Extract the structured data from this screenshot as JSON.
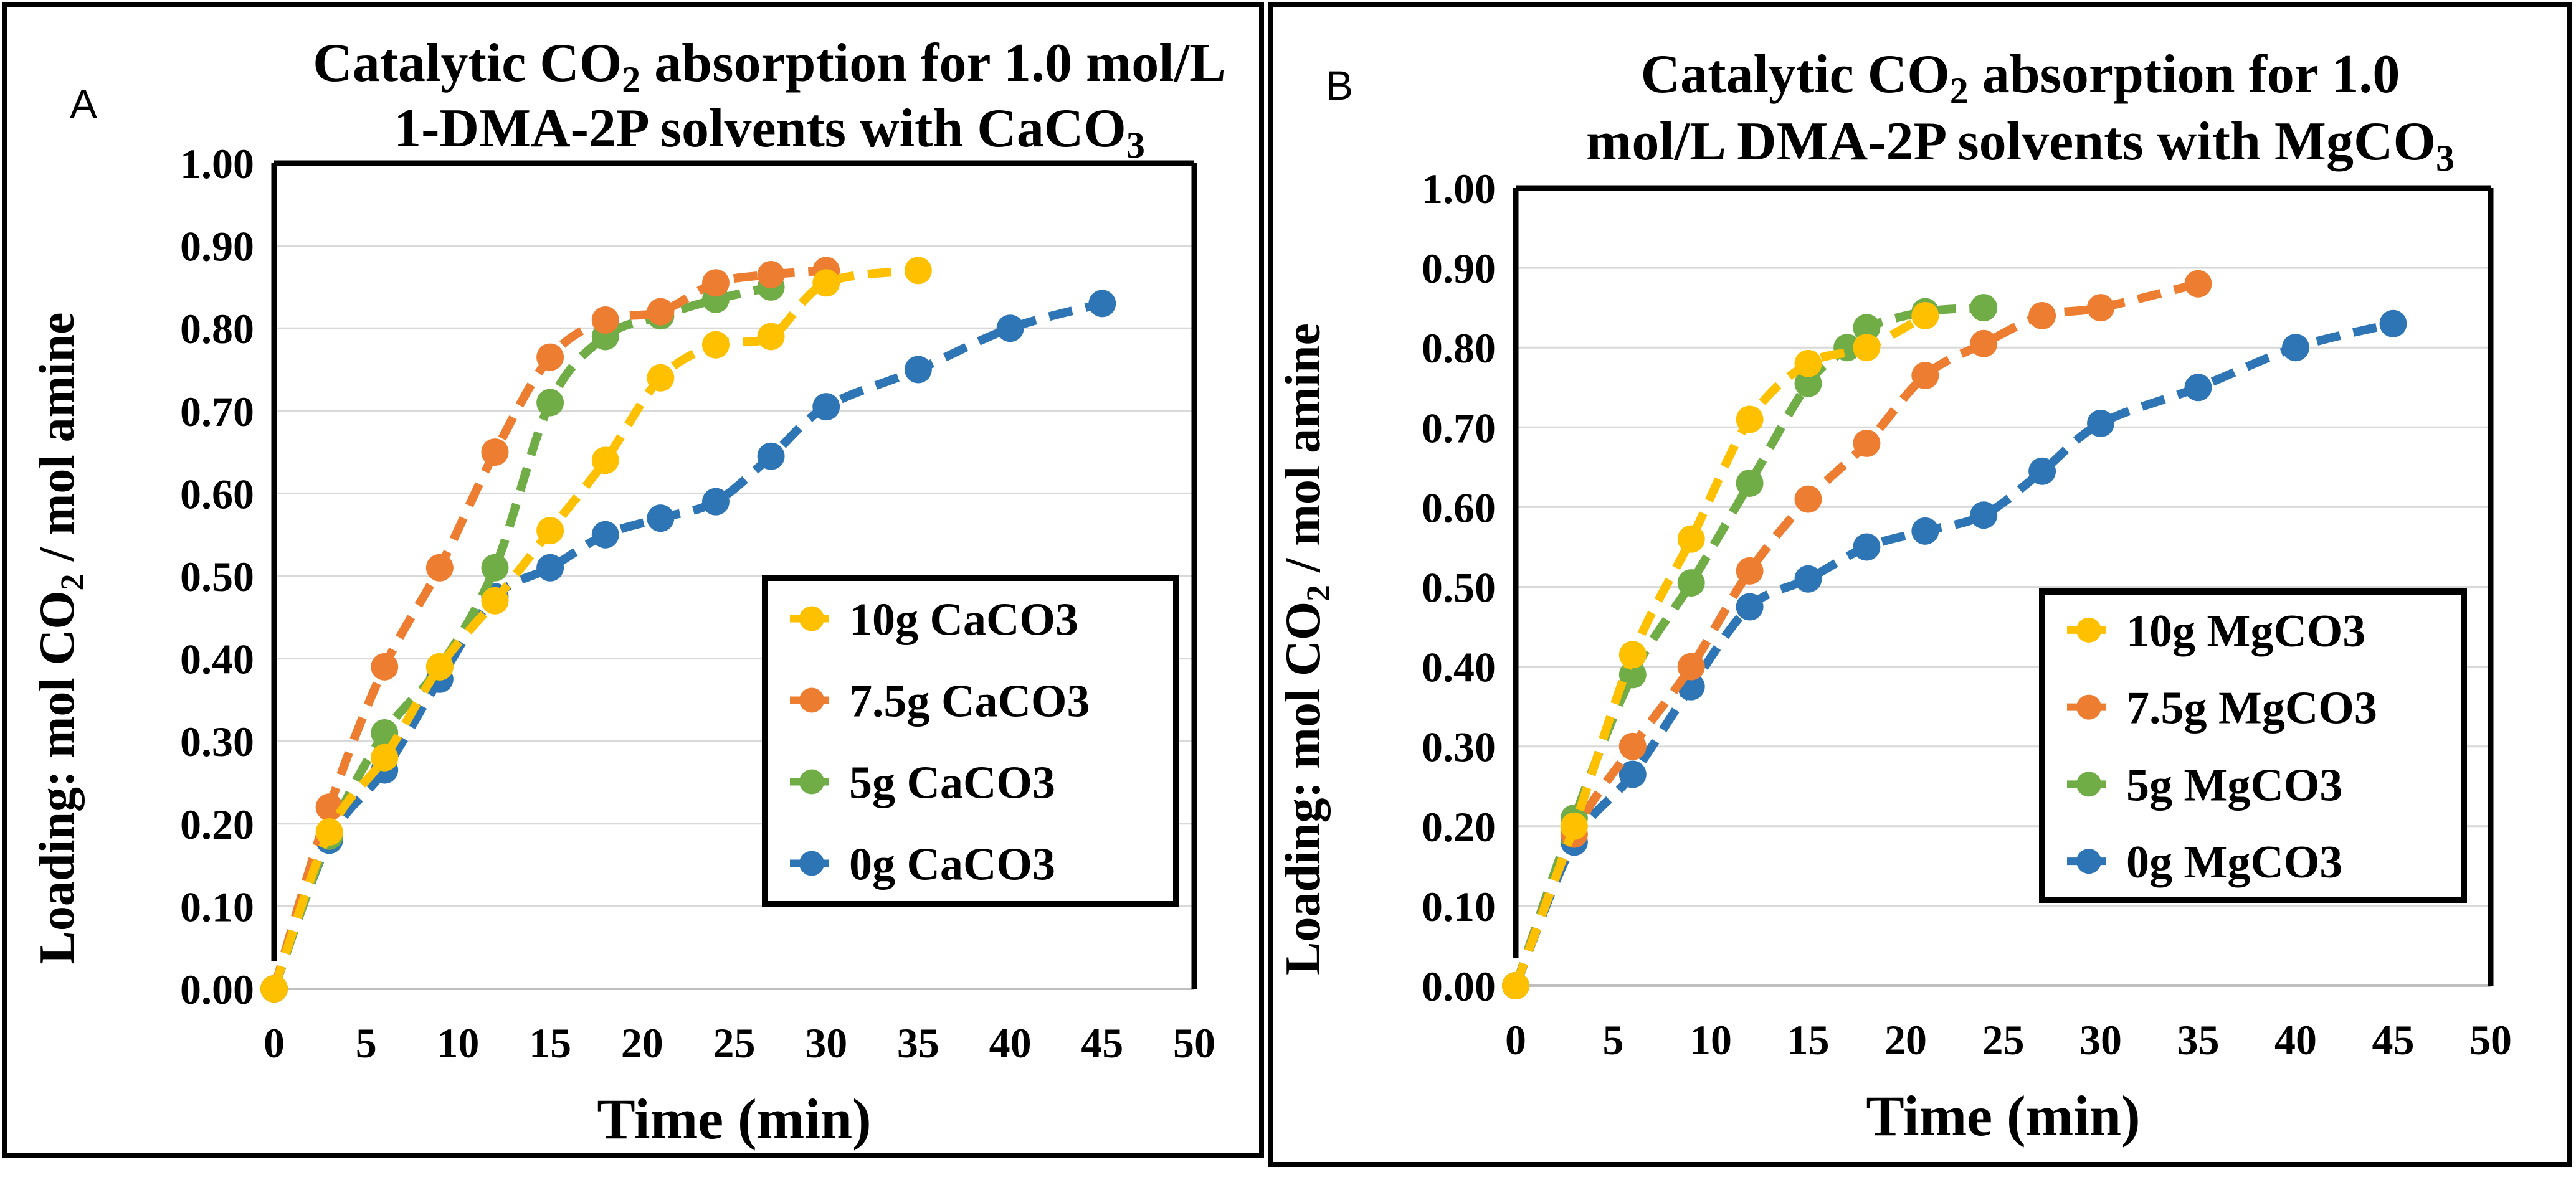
{
  "chart_data": [
    {
      "type": "line",
      "panel_label": "A",
      "title_line1": "Catalytic CO",
      "title_line1_sub": "2",
      "title_line1_tail": " absorption for 1.0 mol/L",
      "title_line2": "1-DMA-2P solvents with CaCO",
      "title_line2_sub": "3",
      "xlabel": "Time (min)",
      "ylabel_pre": "Loading: mol CO",
      "ylabel_sub": "2",
      "ylabel_post": " / mol amine",
      "xlim": [
        0,
        50
      ],
      "ylim": [
        0,
        1.0
      ],
      "xticks": [
        "0",
        "5",
        "10",
        "15",
        "20",
        "25",
        "30",
        "35",
        "40",
        "45",
        "50"
      ],
      "yticks": [
        "0.00",
        "0.10",
        "0.20",
        "0.30",
        "0.40",
        "0.50",
        "0.60",
        "0.70",
        "0.80",
        "0.90",
        "1.00"
      ],
      "grid": true,
      "legend_position": "bottom-right",
      "series": [
        {
          "name": "10g CaCO3",
          "color": "#FFC000",
          "x": [
            0,
            3,
            6,
            9,
            12,
            15,
            18,
            21,
            24,
            27,
            30,
            35
          ],
          "y": [
            0.0,
            0.19,
            0.28,
            0.39,
            0.47,
            0.555,
            0.64,
            0.74,
            0.78,
            0.79,
            0.855,
            0.87
          ]
        },
        {
          "name": "7.5g CaCO3",
          "color": "#ED7D31",
          "x": [
            0,
            3,
            6,
            9,
            12,
            15,
            18,
            21,
            24,
            27,
            30
          ],
          "y": [
            0.0,
            0.22,
            0.39,
            0.51,
            0.65,
            0.765,
            0.81,
            0.82,
            0.855,
            0.865,
            0.87
          ]
        },
        {
          "name": "5g CaCO3",
          "color": "#70AD47",
          "x": [
            0,
            3,
            6,
            9,
            12,
            15,
            18,
            21,
            24,
            27
          ],
          "y": [
            0.0,
            0.185,
            0.31,
            0.39,
            0.51,
            0.71,
            0.79,
            0.815,
            0.835,
            0.85
          ]
        },
        {
          "name": "0g CaCO3",
          "color": "#2E75B6",
          "x": [
            0,
            3,
            6,
            9,
            12,
            15,
            18,
            21,
            24,
            27,
            30,
            35,
            40,
            45
          ],
          "y": [
            0.0,
            0.18,
            0.265,
            0.375,
            0.475,
            0.51,
            0.55,
            0.57,
            0.59,
            0.645,
            0.705,
            0.75,
            0.8,
            0.83
          ]
        }
      ]
    },
    {
      "type": "line",
      "panel_label": "B",
      "title_line1": "Catalytic CO",
      "title_line1_sub": "2",
      "title_line1_tail": " absorption for 1.0",
      "title_line2": "mol/L DMA-2P solvents with MgCO",
      "title_line2_sub": "3",
      "xlabel": "Time (min)",
      "ylabel_pre": "Loading: mol CO",
      "ylabel_sub": "2",
      "ylabel_post": " / mol amine",
      "xlim": [
        0,
        50
      ],
      "ylim": [
        0,
        1.0
      ],
      "xticks": [
        "0",
        "5",
        "10",
        "15",
        "20",
        "25",
        "30",
        "35",
        "40",
        "45",
        "50"
      ],
      "yticks": [
        "0.00",
        "0.10",
        "0.20",
        "0.30",
        "0.40",
        "0.50",
        "0.60",
        "0.70",
        "0.80",
        "0.90",
        "1.00"
      ],
      "grid": true,
      "legend_position": "bottom-right",
      "series": [
        {
          "name": "10g MgCO3",
          "color": "#FFC000",
          "x": [
            0,
            3,
            6,
            9,
            12,
            15,
            18,
            21
          ],
          "y": [
            0.0,
            0.2,
            0.415,
            0.56,
            0.71,
            0.78,
            0.8,
            0.84
          ]
        },
        {
          "name": "7.5g MgCO3",
          "color": "#ED7D31",
          "x": [
            0,
            3,
            6,
            9,
            12,
            15,
            18,
            21,
            24,
            27,
            30,
            35
          ],
          "y": [
            0.0,
            0.19,
            0.3,
            0.4,
            0.52,
            0.61,
            0.68,
            0.765,
            0.805,
            0.84,
            0.85,
            0.88
          ]
        },
        {
          "name": "5g MgCO3",
          "color": "#70AD47",
          "x": [
            0,
            3,
            6,
            9,
            12,
            15,
            17,
            18,
            21,
            24
          ],
          "y": [
            0.0,
            0.21,
            0.39,
            0.505,
            0.63,
            0.755,
            0.8,
            0.825,
            0.845,
            0.85
          ]
        },
        {
          "name": "0g MgCO3",
          "color": "#2E75B6",
          "x": [
            0,
            3,
            6,
            9,
            12,
            15,
            18,
            21,
            24,
            27,
            30,
            35,
            40,
            45
          ],
          "y": [
            0.0,
            0.18,
            0.265,
            0.375,
            0.475,
            0.51,
            0.55,
            0.57,
            0.59,
            0.645,
            0.705,
            0.75,
            0.8,
            0.83
          ]
        }
      ]
    }
  ]
}
